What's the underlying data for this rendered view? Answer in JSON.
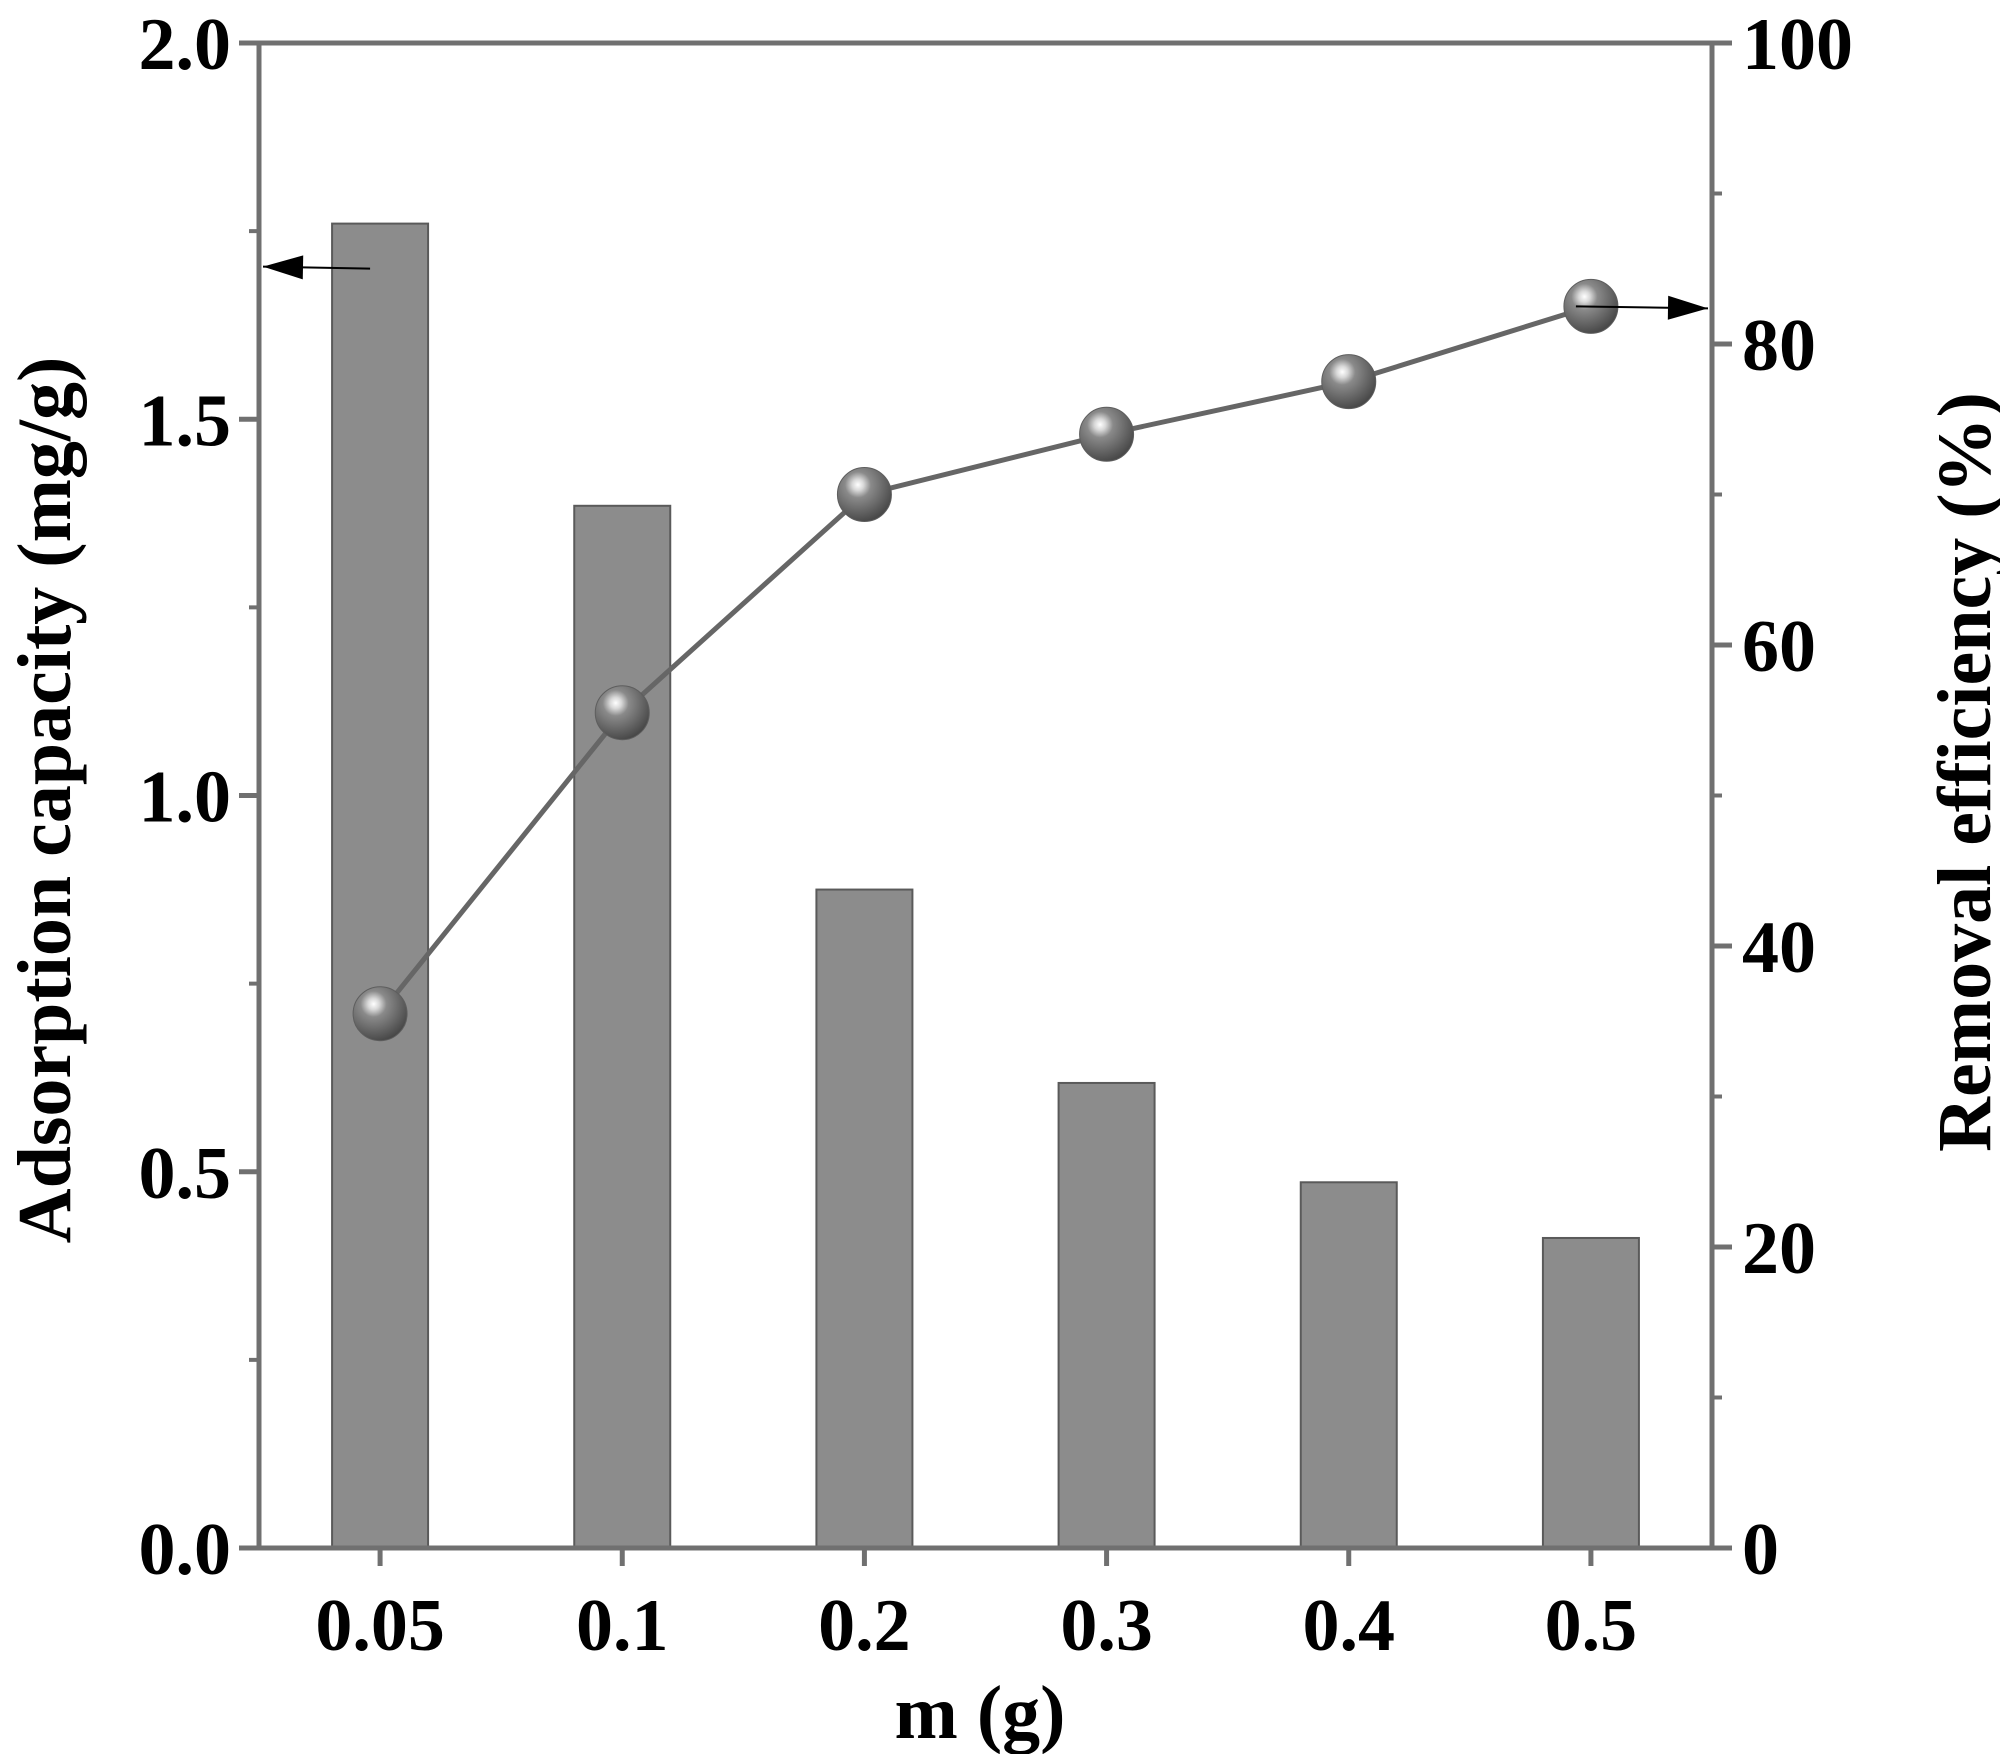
{
  "chart_data": {
    "type": "bar",
    "categories": [
      "0.05",
      "0.1",
      "0.2",
      "0.3",
      "0.4",
      "0.5"
    ],
    "xlabel": "m (g)",
    "series": [
      {
        "type": "bar",
        "axis": "left",
        "values": [
          1.76,
          1.385,
          0.875,
          0.618,
          0.486,
          0.412
        ]
      },
      {
        "type": "line",
        "axis": "right",
        "values": [
          35.5,
          55.5,
          70,
          74,
          77.5,
          82.5
        ]
      }
    ],
    "y_left": {
      "label": "Adsorption capacity (mg/g)",
      "ylim": [
        0,
        2.0
      ],
      "ticks": [
        "0.0",
        "0.5",
        "1.0",
        "1.5",
        "2.0"
      ],
      "tick_values": [
        0,
        0.5,
        1.0,
        1.5,
        2.0
      ]
    },
    "y_right": {
      "label": "Removal efficiency (%)",
      "ylim": [
        0,
        100
      ],
      "ticks": [
        "0",
        "20",
        "40",
        "60",
        "80",
        "100"
      ],
      "tick_values": [
        0,
        20,
        40,
        60,
        80,
        100
      ]
    },
    "grid": false,
    "legend": "none",
    "annotations": [
      {
        "type": "arrow",
        "points_to": "left axis",
        "series": 0
      },
      {
        "type": "arrow",
        "points_to": "right axis",
        "series": 1
      }
    ],
    "colors": {
      "bar_fill": "#8c8c8c",
      "bar_stroke": "#5a5a5a",
      "line": "#666666",
      "marker": "#5e5e5e",
      "axis": "#707070"
    }
  }
}
